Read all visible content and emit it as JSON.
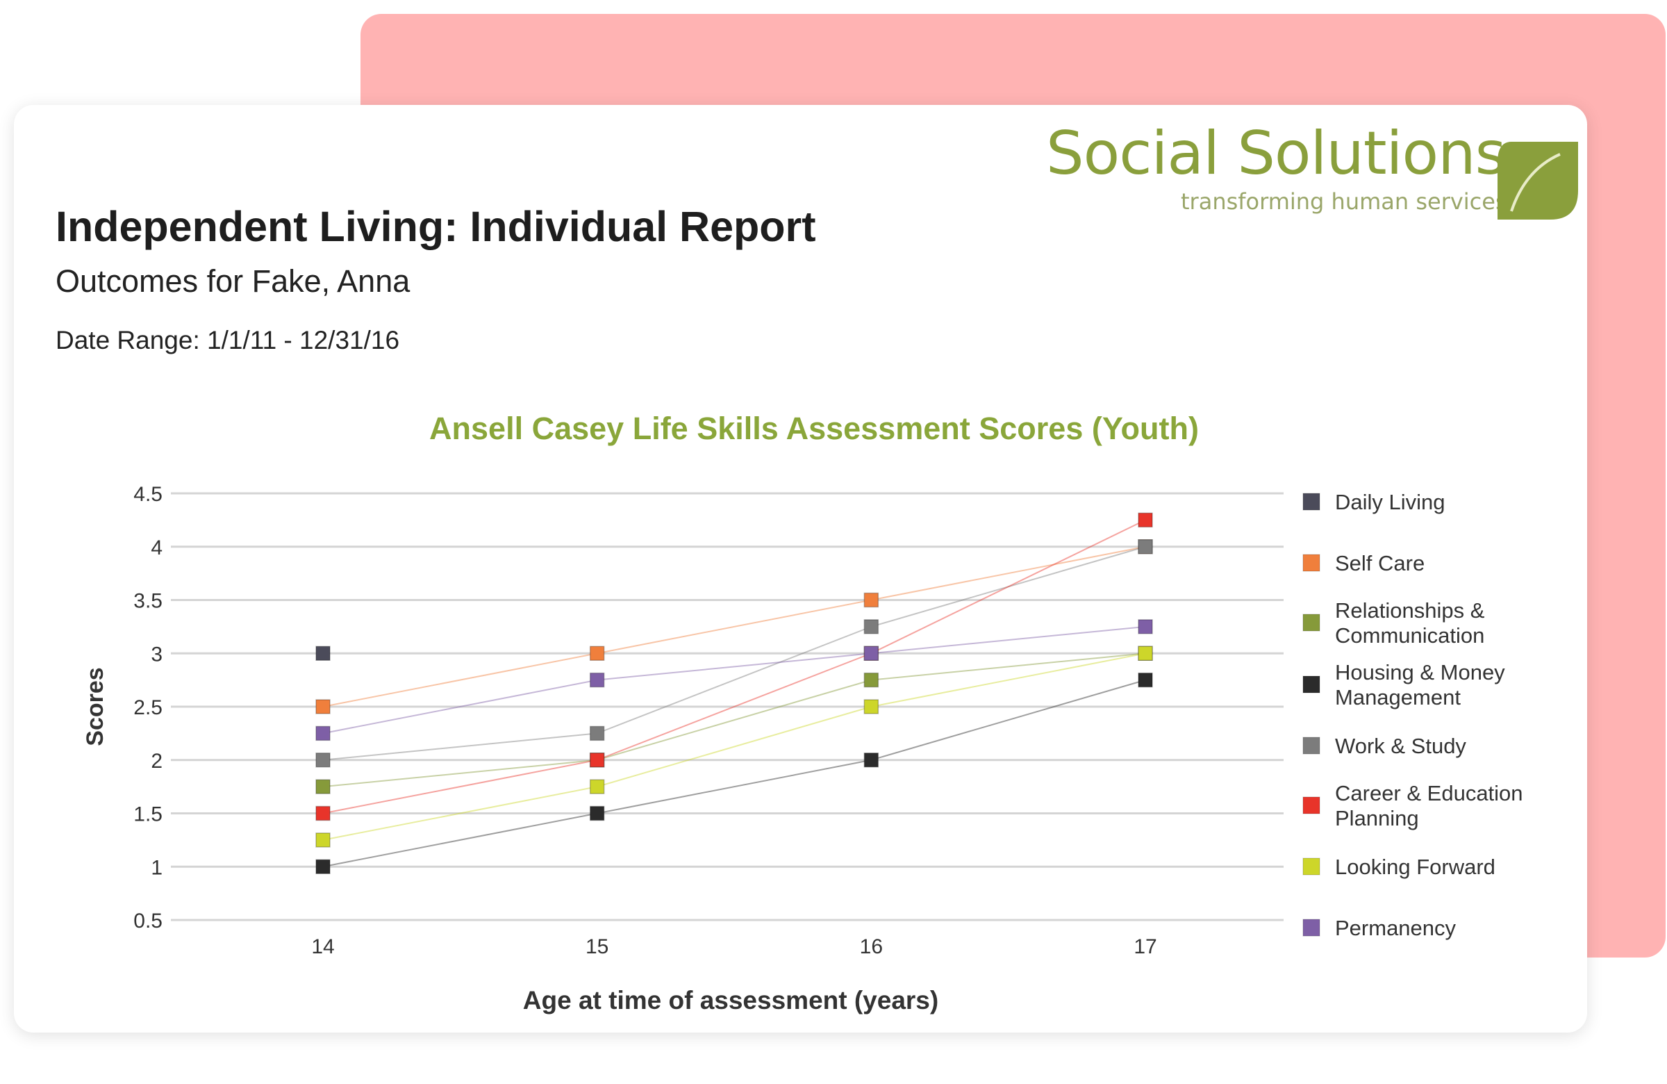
{
  "report": {
    "title": "Independent Living: Individual Report",
    "subtitle": "Outcomes for Fake, Anna",
    "date_range": "Date Range: 1/1/11 - 12/31/16"
  },
  "logo": {
    "name": "Social Solutions",
    "tagline": "transforming human services",
    "color": "#8a9f3c"
  },
  "chart_data": {
    "type": "line",
    "title": "Ansell Casey Life Skills Assessment Scores (Youth)",
    "xlabel": "Age at time of assessment (years)",
    "ylabel": "Scores",
    "x": [
      14,
      15,
      16,
      17
    ],
    "x_tick_labels": [
      "14",
      "15",
      "16",
      "17"
    ],
    "ylim": [
      0.5,
      4.5
    ],
    "y_ticks": [
      0.5,
      1,
      1.5,
      2,
      2.5,
      3,
      3.5,
      4,
      4.5
    ],
    "y_tick_labels": [
      "0.5",
      "1",
      "1.5",
      "2",
      "2.5",
      "3",
      "3.5",
      "4",
      "4.5"
    ],
    "grid": true,
    "legend_position": "right",
    "series": [
      {
        "name": "Daily Living",
        "color": "#4b4b5a",
        "values": [
          3,
          null,
          null,
          null
        ]
      },
      {
        "name": "Self Care",
        "color": "#f07f3c",
        "values": [
          2.5,
          3,
          3.5,
          4
        ]
      },
      {
        "name": "Relationships & Communication",
        "lines": [
          "Relationships &",
          "Communication"
        ],
        "color": "#869a3a",
        "values": [
          1.75,
          2,
          2.75,
          3
        ]
      },
      {
        "name": "Housing & Money Management",
        "lines": [
          "Housing & Money",
          "Management"
        ],
        "color": "#2b2b2b",
        "values": [
          1,
          1.5,
          2,
          2.75
        ]
      },
      {
        "name": "Work & Study",
        "color": "#7c7c7c",
        "values": [
          2,
          2.25,
          3.25,
          4
        ]
      },
      {
        "name": "Career & Education Planning",
        "lines": [
          "Career & Education",
          "Planning"
        ],
        "color": "#e8342a",
        "values": [
          1.5,
          2,
          3,
          4.25
        ]
      },
      {
        "name": "Looking Forward",
        "color": "#cdd62a",
        "values": [
          1.25,
          1.75,
          2.5,
          3
        ]
      },
      {
        "name": "Permanency",
        "color": "#7e5fa6",
        "values": [
          2.25,
          2.75,
          3,
          3.25
        ]
      }
    ]
  }
}
